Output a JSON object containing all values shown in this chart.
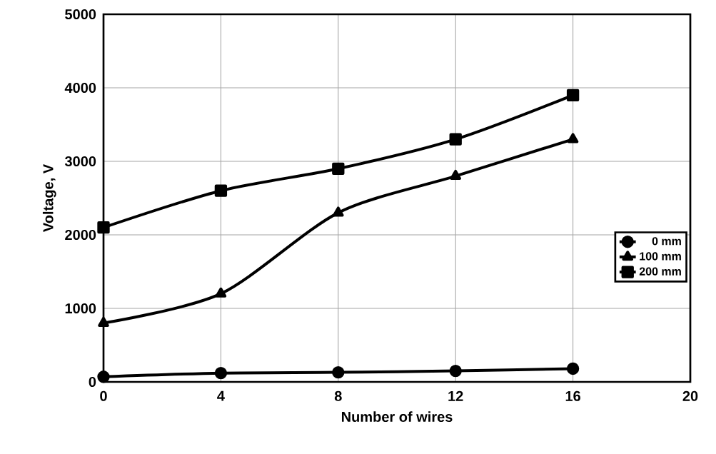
{
  "chart_data": {
    "type": "line",
    "xlabel": "Number of wires",
    "ylabel": "Voltage, V",
    "x": [
      0,
      4,
      8,
      12,
      16
    ],
    "series": [
      {
        "name": "0 mm",
        "color": "#000000",
        "marker": "circle",
        "values": [
          70,
          120,
          130,
          150,
          180
        ]
      },
      {
        "name": "100 mm",
        "color": "#000000",
        "marker": "triangle",
        "values": [
          800,
          1200,
          2300,
          2800,
          3300
        ]
      },
      {
        "name": "200 mm",
        "color": "#000000",
        "marker": "square",
        "values": [
          2100,
          2600,
          2900,
          3300,
          3900
        ]
      }
    ],
    "xlim": [
      0,
      20
    ],
    "xticks": [
      0,
      4,
      8,
      12,
      16,
      20
    ],
    "ylim": [
      0,
      5000
    ],
    "yticks": [
      0,
      1000,
      2000,
      3000,
      4000,
      5000
    ],
    "grid": true,
    "legend": "right",
    "line_style": "solid"
  }
}
